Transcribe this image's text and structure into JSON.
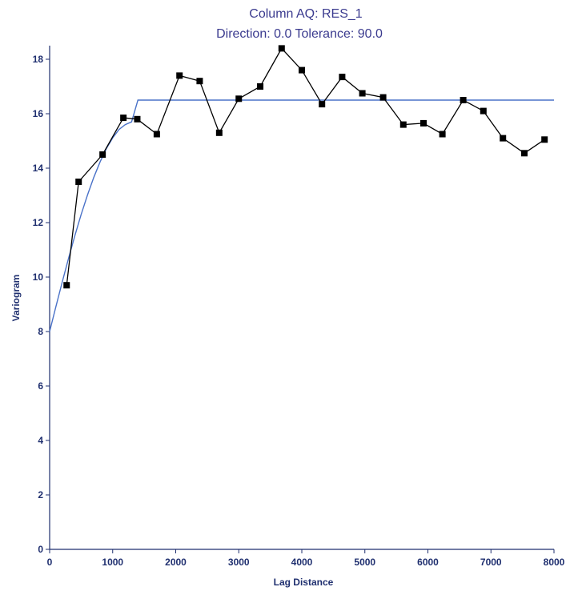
{
  "chart_data": {
    "type": "line",
    "title": "Column AQ: RES_1",
    "subtitle": "Direction: 0.0  Tolerance: 90.0",
    "xlabel": "Lag Distance",
    "ylabel": "Variogram",
    "xlim": [
      0,
      8000
    ],
    "ylim": [
      0,
      18.5
    ],
    "xticks": [
      0,
      1000,
      2000,
      3000,
      4000,
      5000,
      6000,
      7000,
      8000
    ],
    "yticks": [
      0,
      2,
      4,
      6,
      8,
      10,
      12,
      14,
      16,
      18
    ],
    "grid": false,
    "colors": {
      "experimental": "#000000",
      "model": "#4a72c8",
      "axis": "#1f2f6f",
      "title": "#3b3b8f"
    },
    "series": [
      {
        "kind": "experimental",
        "marker": "square",
        "x": [
          270,
          460,
          840,
          1170,
          1390,
          1700,
          2060,
          2380,
          2690,
          3000,
          3340,
          3680,
          4000,
          4320,
          4640,
          4960,
          5290,
          5610,
          5930,
          6230,
          6560,
          6880,
          7190,
          7530,
          7850
        ],
        "y": [
          9.7,
          13.5,
          14.5,
          15.85,
          15.8,
          15.25,
          17.4,
          17.2,
          15.3,
          16.55,
          17.0,
          18.4,
          17.6,
          16.35,
          17.35,
          16.75,
          16.6,
          15.6,
          15.65,
          15.25,
          16.5,
          16.1,
          15.1,
          14.55,
          15.05
        ]
      },
      {
        "kind": "model",
        "x": [
          0,
          100,
          200,
          300,
          400,
          500,
          600,
          700,
          800,
          900,
          1000,
          1100,
          1200,
          1300,
          1400,
          1500,
          2000,
          3000,
          4000,
          5000,
          6000,
          7000,
          8000
        ],
        "y": [
          8.0,
          8.92,
          9.82,
          10.69,
          11.52,
          12.3,
          13.01,
          13.66,
          14.23,
          14.72,
          15.11,
          15.42,
          15.6,
          15.7,
          16.5,
          16.5,
          16.5,
          16.5,
          16.5,
          16.5,
          16.5,
          16.5,
          16.5
        ]
      }
    ]
  }
}
